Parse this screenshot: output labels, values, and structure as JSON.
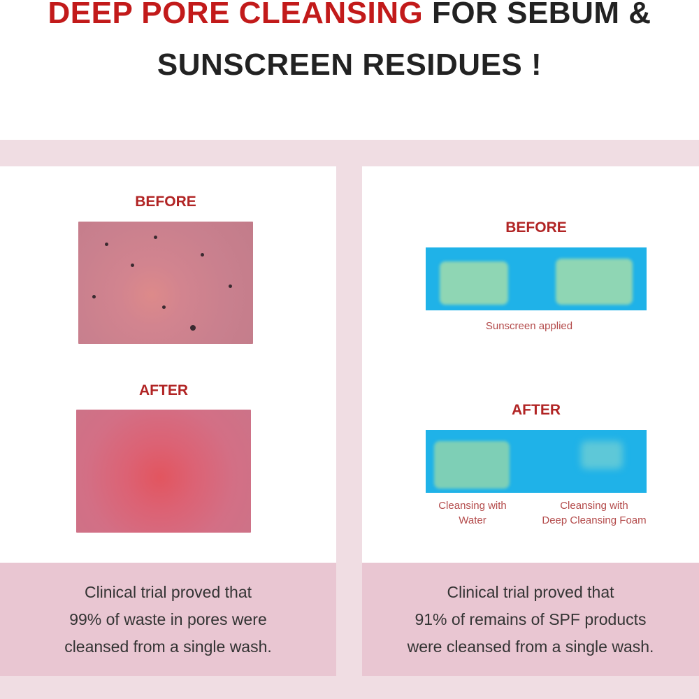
{
  "headline": {
    "highlight": "DEEP PORE CLEANSING",
    "rest_line1": " FOR SEBUM &",
    "line2": "SUNSCREEN RESIDUES !"
  },
  "colors": {
    "accent": "#c21a1a",
    "band": "#f0dde3",
    "footer": "#e9c6d2",
    "test_blue": "#1fb2e8"
  },
  "left_panel": {
    "before_label": "BEFORE",
    "after_label": "AFTER",
    "footer": [
      "Clinical trial proved that",
      "99% of waste in pores were",
      "cleansed from a single wash."
    ]
  },
  "right_panel": {
    "before_label": "BEFORE",
    "before_caption": "Sunscreen applied",
    "after_label": "AFTER",
    "after_captions": [
      [
        "Cleansing with",
        "Water"
      ],
      [
        "Cleansing with",
        "Deep Cleansing Foam"
      ]
    ],
    "footer": [
      "Clinical trial proved that",
      "91% of remains of SPF products",
      "were cleansed from a single wash."
    ]
  }
}
